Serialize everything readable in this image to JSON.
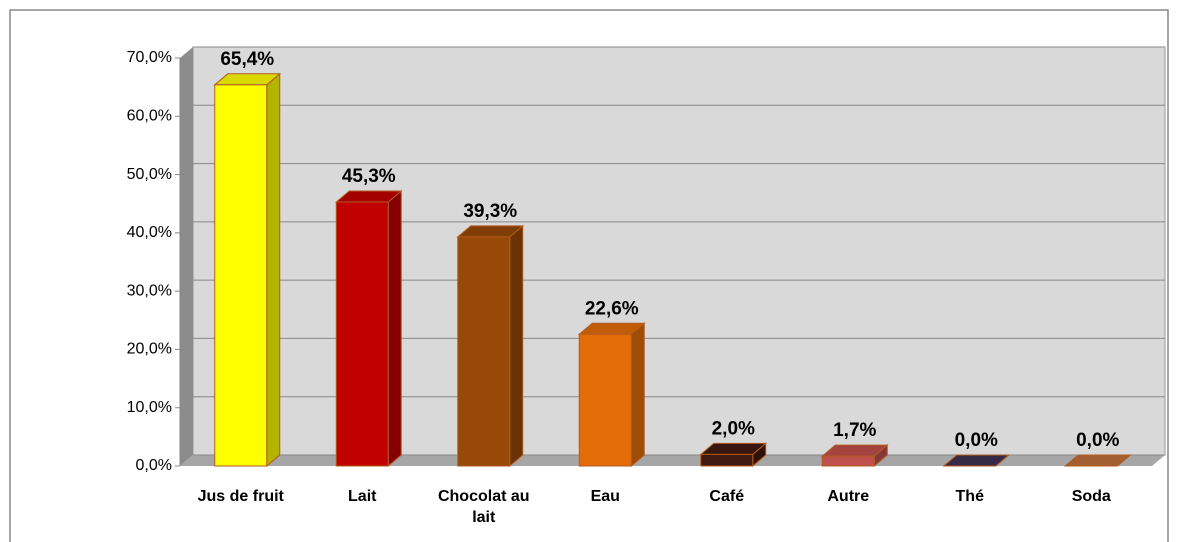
{
  "chart_data": {
    "type": "bar3d",
    "categories": [
      "Jus de fruit",
      "Lait",
      "Chocolat au lait",
      "Eau",
      "Café",
      "Autre",
      "Thé",
      "Soda"
    ],
    "values": [
      65.4,
      45.3,
      39.3,
      22.6,
      2.0,
      1.7,
      0.0,
      0.0
    ],
    "value_labels": [
      "65,4%",
      "45,3%",
      "39,3%",
      "22,6%",
      "2,0%",
      "1,7%",
      "0,0%",
      "0,0%"
    ],
    "colors": [
      "#ffff00",
      "#c00000",
      "#984807",
      "#e36c09",
      "#3f1a10",
      "#c0504d",
      "#403152",
      "#c0703a"
    ],
    "ylim": [
      0,
      70
    ],
    "yticks": [
      {
        "value": 0,
        "label": "0,0%"
      },
      {
        "value": 10,
        "label": "10,0%"
      },
      {
        "value": 20,
        "label": "20,0%"
      },
      {
        "value": 30,
        "label": "30,0%"
      },
      {
        "value": 40,
        "label": "40,0%"
      },
      {
        "value": 50,
        "label": "50,0%"
      },
      {
        "value": 60,
        "label": "60,0%"
      },
      {
        "value": 70,
        "label": "70,0%"
      }
    ],
    "grid": true
  }
}
